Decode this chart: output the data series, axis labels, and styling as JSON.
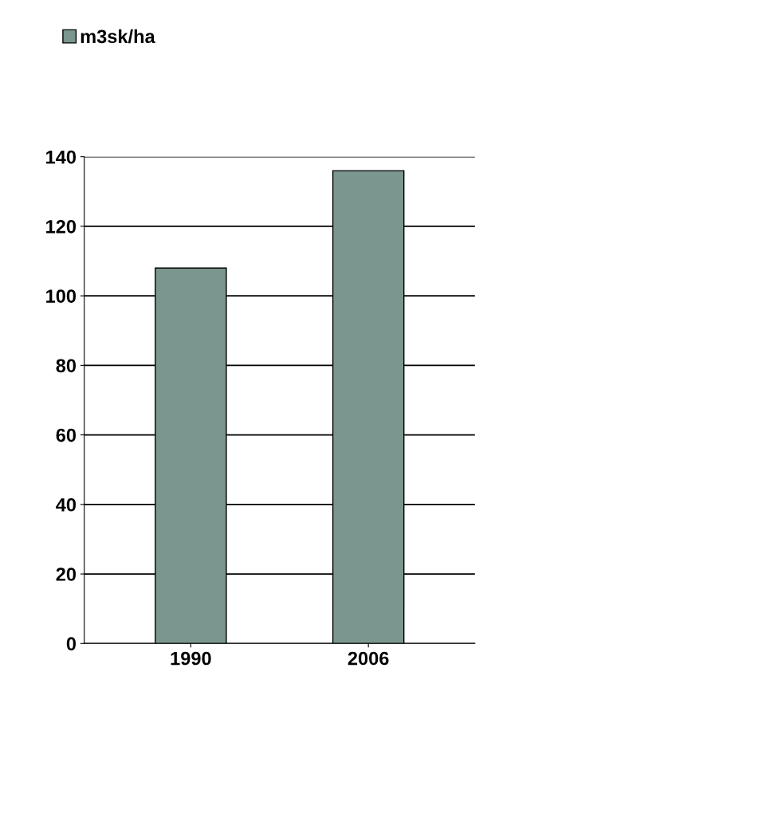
{
  "chart_data": {
    "type": "bar",
    "categories": [
      "1990",
      "2006"
    ],
    "series": [
      {
        "name": "m3sk/ha",
        "color": "#7a968e",
        "values": [
          108,
          136
        ]
      }
    ],
    "ylim": [
      0,
      140
    ],
    "yticks": [
      0,
      20,
      40,
      60,
      80,
      100,
      120,
      140
    ],
    "grid": "y",
    "legend": "top left"
  }
}
